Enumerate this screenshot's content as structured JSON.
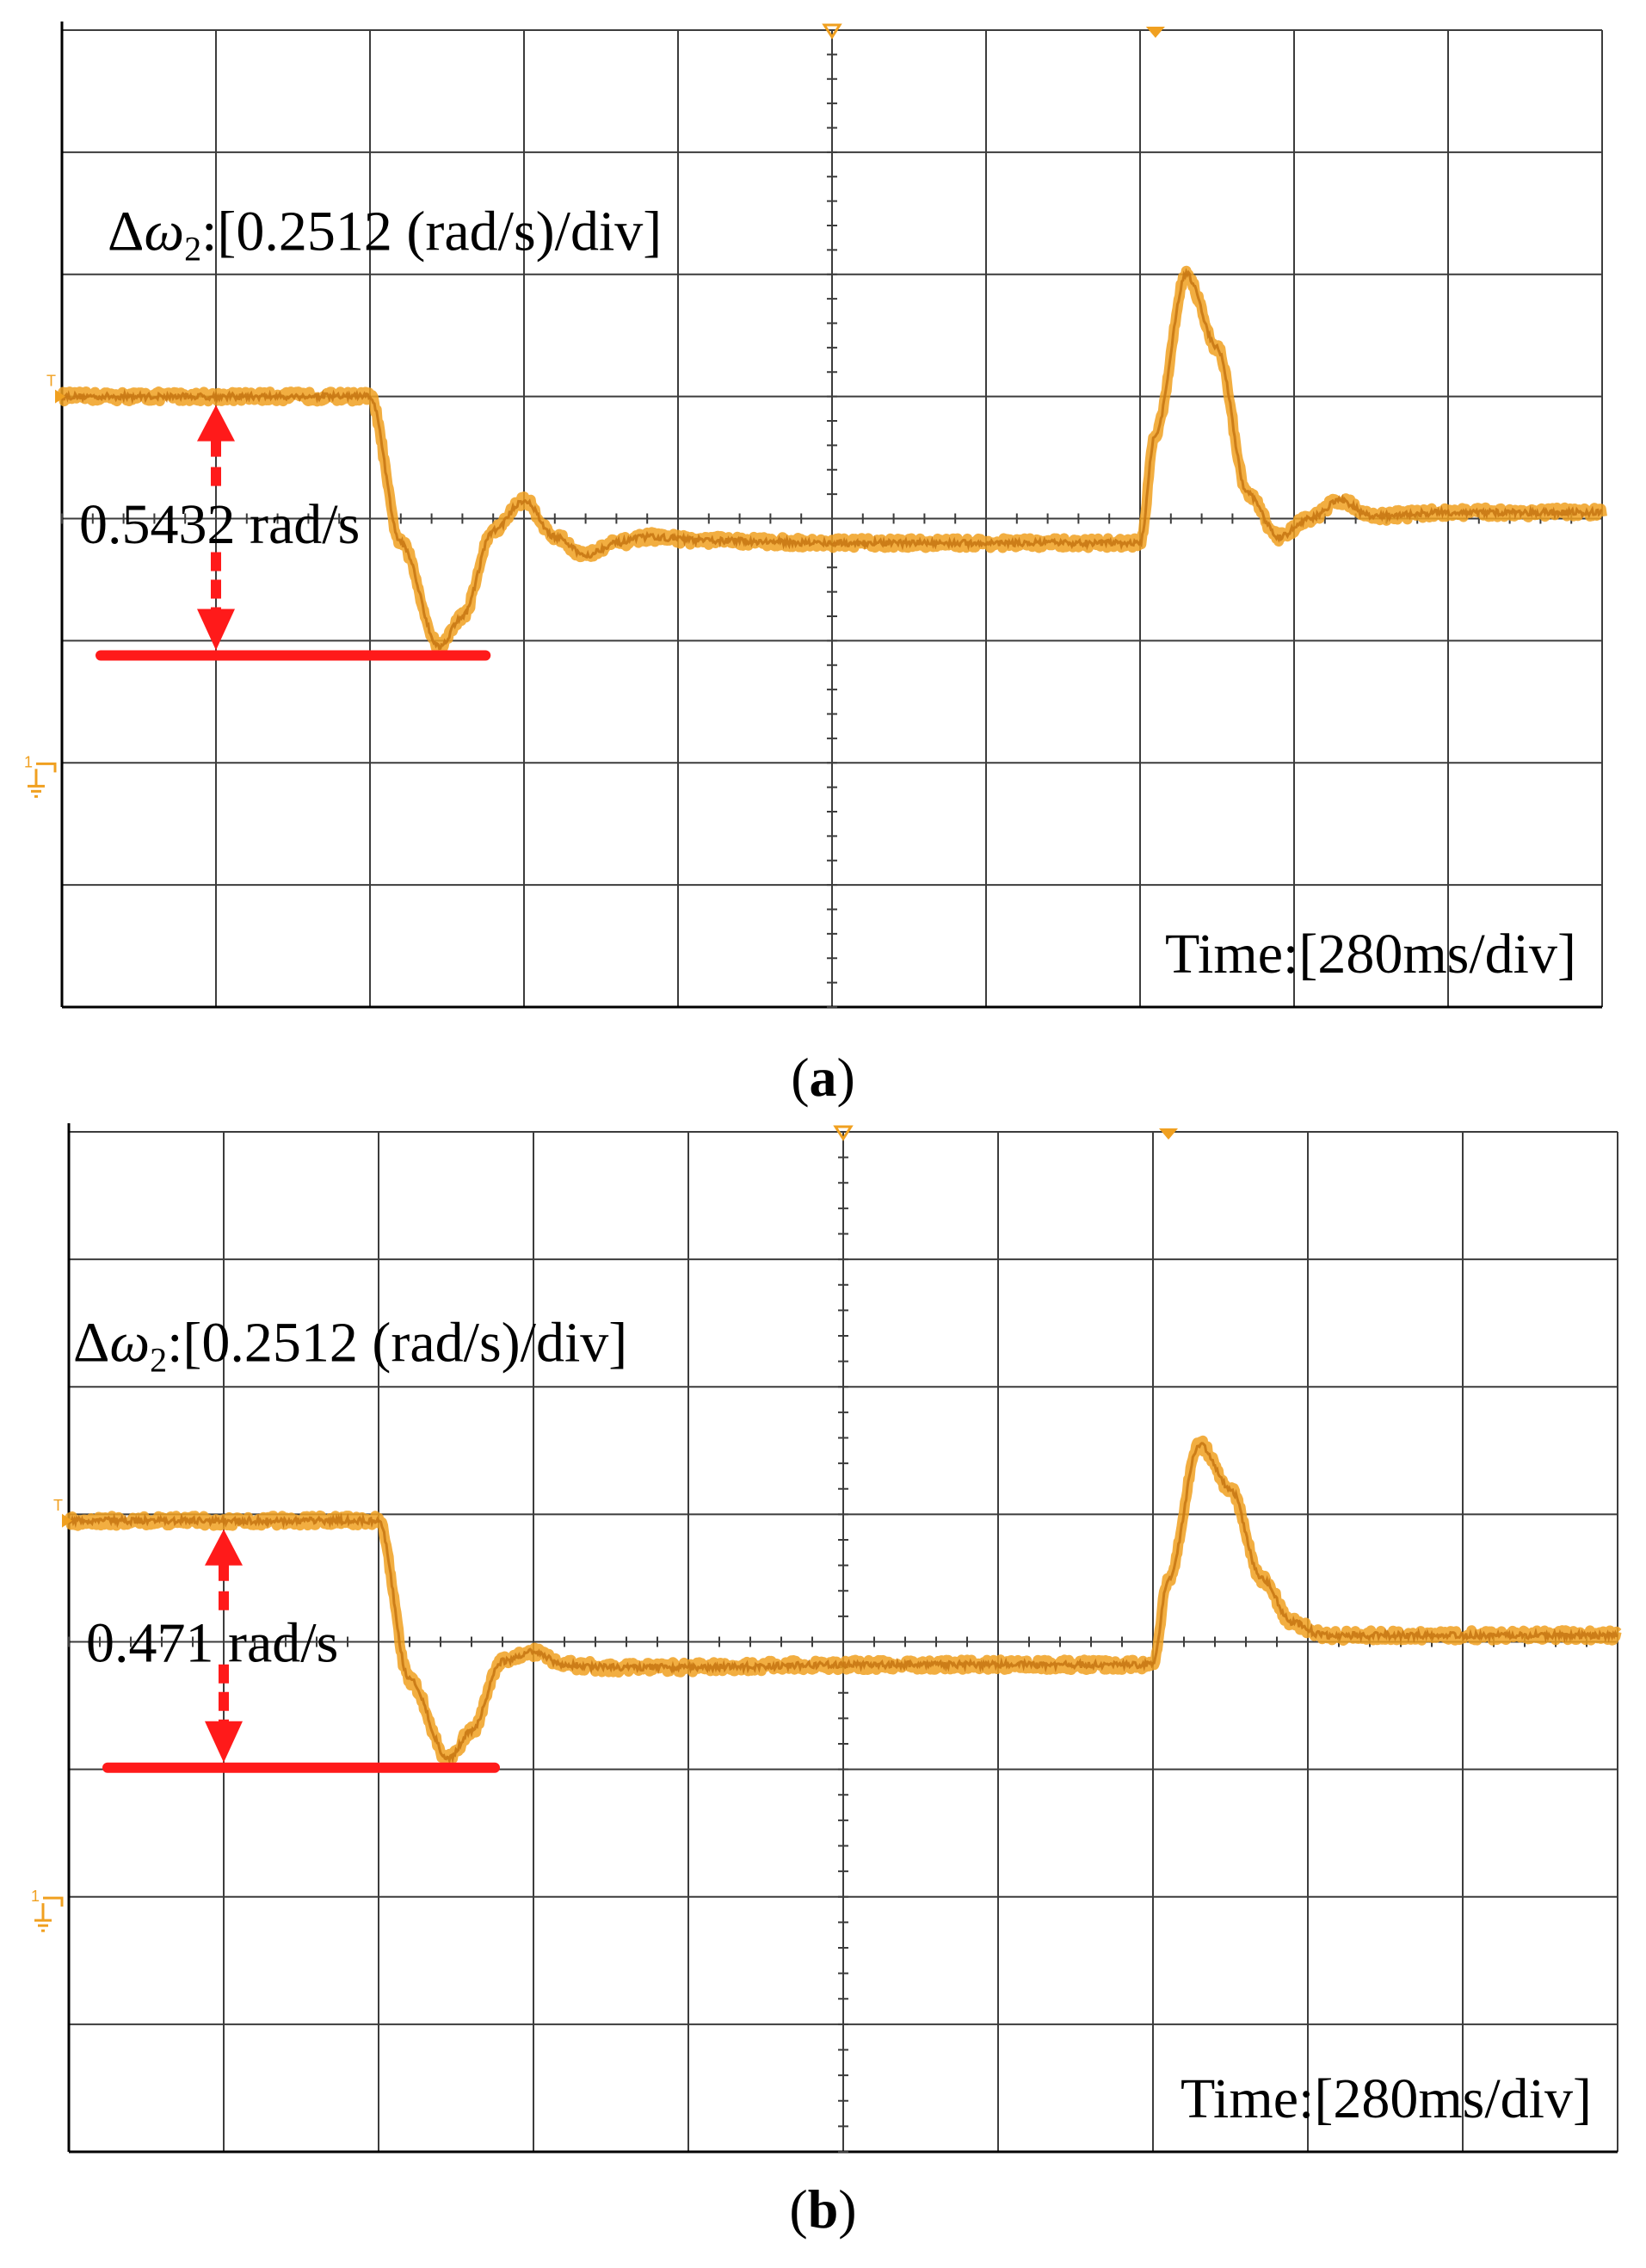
{
  "figure": {
    "panels": [
      {
        "letter": "a"
      },
      {
        "letter": "b"
      }
    ]
  },
  "colors": {
    "trace": "#F0A020",
    "trace_dark": "#C87814",
    "annotation": "#FF1A1A",
    "grid": "#3C3C3C"
  },
  "chart_data": [
    {
      "type": "line",
      "panel": "a",
      "y_scale_label": "Δω2:[0.2512 (rad/s)/div]",
      "x_scale_label": "Time:[280ms/div]",
      "divisions": {
        "x": 10,
        "y": 8
      },
      "volts_per_div_note": "0.2512 (rad/s)/div",
      "time_per_div_ms": 280,
      "xlim_div": [
        0,
        10
      ],
      "ylim_div": [
        -4,
        4
      ],
      "series": [
        {
          "x_div": [
            0,
            2.0,
            2.2,
            2.45,
            2.6,
            2.8,
            3.0,
            3.2,
            3.4,
            3.6,
            3.8,
            4.2,
            5.0,
            6.0,
            7.0,
            7.1,
            7.3,
            7.5,
            7.7,
            7.9,
            8.1,
            8.3,
            8.5,
            9.0,
            10.0
          ],
          "y_div": [
            1.0,
            1.0,
            -0.2,
            -1.05,
            -0.8,
            -0.1,
            0.15,
            -0.15,
            -0.3,
            -0.2,
            -0.15,
            -0.18,
            -0.2,
            -0.2,
            -0.2,
            0.7,
            2.0,
            1.4,
            0.2,
            -0.15,
            0.0,
            0.15,
            0.02,
            0.05,
            0.05
          ]
        }
      ],
      "annotation": {
        "text": "0.5432 rad/s",
        "value": 0.5432
      }
    },
    {
      "type": "line",
      "panel": "b",
      "y_scale_label": "Δω2:[0.2512 (rad/s)/div]",
      "x_scale_label": "Time:[280ms/div]",
      "divisions": {
        "x": 10,
        "y": 8
      },
      "time_per_div_ms": 280,
      "xlim_div": [
        0,
        10
      ],
      "ylim_div": [
        -4,
        4
      ],
      "series": [
        {
          "x_div": [
            0,
            2.0,
            2.2,
            2.45,
            2.6,
            2.8,
            3.0,
            3.2,
            3.5,
            4.0,
            5.0,
            6.0,
            7.0,
            7.1,
            7.3,
            7.5,
            7.7,
            7.9,
            8.1,
            8.5,
            9.0,
            10.0
          ],
          "y_div": [
            0.95,
            0.95,
            -0.3,
            -0.92,
            -0.7,
            -0.15,
            -0.08,
            -0.18,
            -0.2,
            -0.2,
            -0.18,
            -0.18,
            -0.18,
            0.5,
            1.55,
            1.2,
            0.5,
            0.15,
            0.05,
            0.05,
            0.05,
            0.05
          ]
        }
      ],
      "annotation": {
        "text": "0.471 rad/s",
        "value": 0.471
      }
    }
  ]
}
